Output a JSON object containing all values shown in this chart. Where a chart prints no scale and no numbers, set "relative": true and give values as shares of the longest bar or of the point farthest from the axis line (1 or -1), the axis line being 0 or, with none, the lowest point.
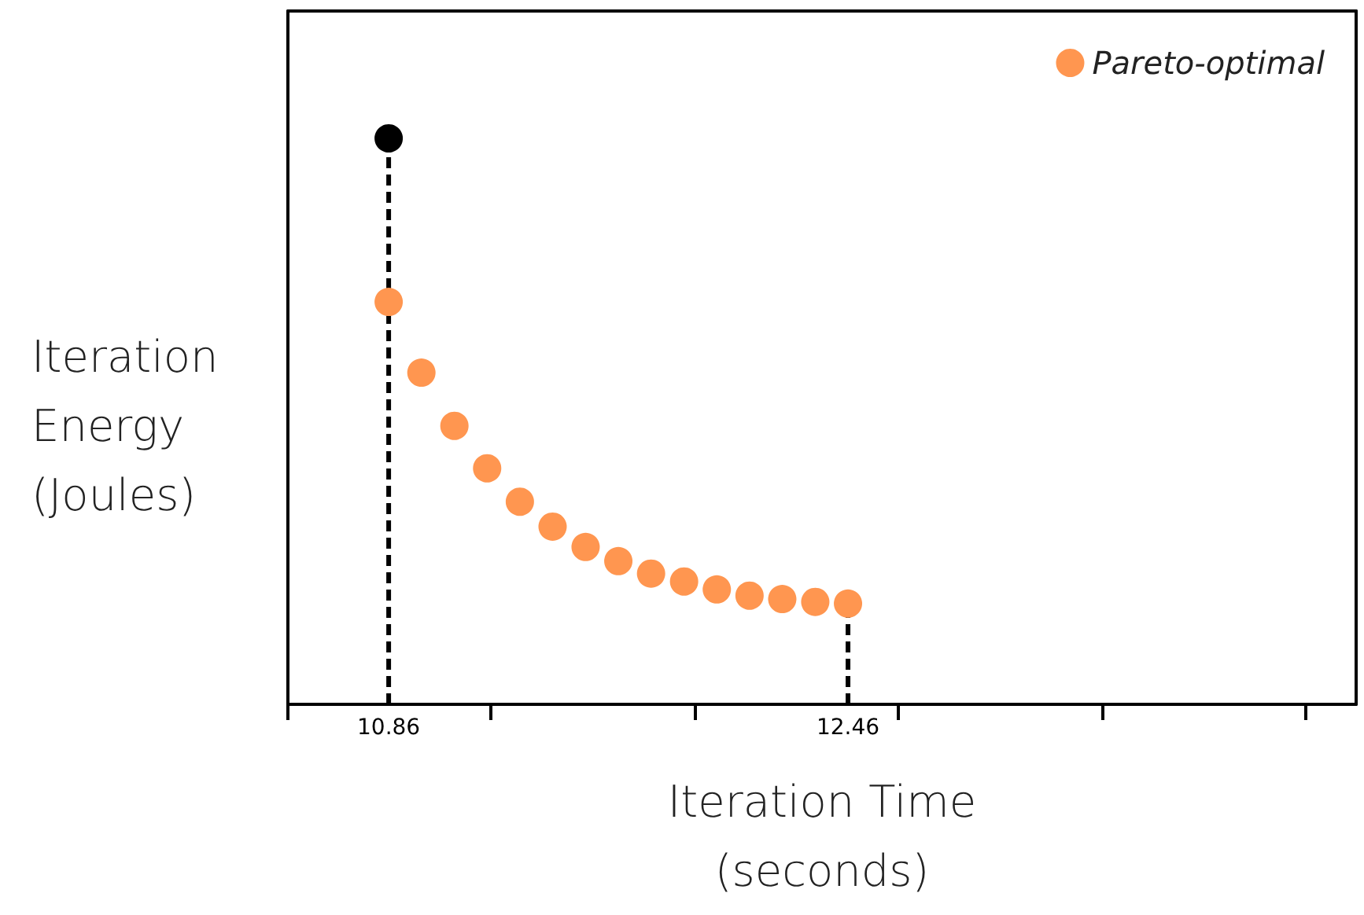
{
  "chart_data": {
    "type": "scatter",
    "xlabel": "Iteration Time\n(seconds)",
    "ylabel": "Iteration\nEnergy\n(Joules)",
    "relative": true,
    "xlim": [
      10.509,
      14.23
    ],
    "xticks": [
      {
        "value": 10.509,
        "label": null
      },
      {
        "value": 10.86,
        "label": "10.86"
      },
      {
        "value": 11.216,
        "label": null
      },
      {
        "value": 11.928,
        "label": null
      },
      {
        "value": 12.46,
        "label": "12.46"
      },
      {
        "value": 12.635,
        "label": null
      },
      {
        "value": 13.348,
        "label": null
      },
      {
        "value": 14.054,
        "label": null
      }
    ],
    "ref_lines": [
      {
        "axis": "x",
        "value": 10.86,
        "color": "#000000",
        "line_style": "dashed"
      },
      {
        "axis": "x",
        "value": 12.46,
        "color": "#000000",
        "line_style": "dashed"
      }
    ],
    "legend": "top right",
    "grid": false,
    "marker": "circle",
    "series": [
      {
        "type": "scatter",
        "color": "#000000",
        "x": [
          10.86
        ],
        "values": [
          1
        ]
      },
      {
        "type": "scatter",
        "name": "Pareto-optimal",
        "color": "#ff9650",
        "x": [
          10.86,
          10.974,
          11.089,
          11.203,
          11.317,
          11.431,
          11.546,
          11.66,
          11.774,
          11.889,
          12.003,
          12.117,
          12.231,
          12.346,
          12.46
        ],
        "values": [
          0.711,
          0.586,
          0.492,
          0.417,
          0.358,
          0.314,
          0.278,
          0.253,
          0.231,
          0.217,
          0.203,
          0.192,
          0.186,
          0.181,
          0.178
        ]
      }
    ]
  }
}
